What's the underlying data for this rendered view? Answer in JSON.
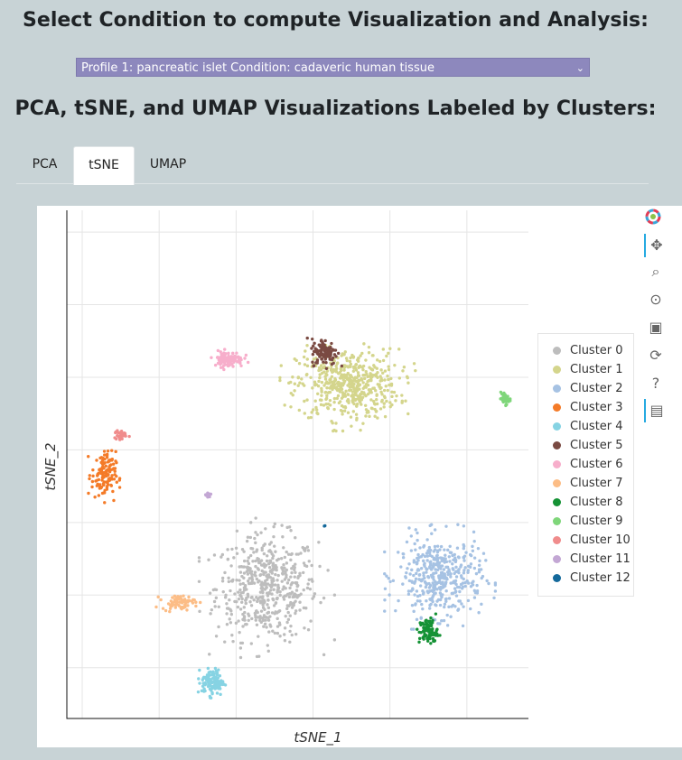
{
  "header": {
    "select_title": "Select Condition to compute Visualization and Analysis:",
    "section_title": "PCA, tSNE, and UMAP Visualizations Labeled by Clusters:"
  },
  "condition_select": {
    "value": "Profile 1: pancreatic islet Condition: cadaveric human tissue",
    "chevron": "⌄"
  },
  "tabs": [
    {
      "label": "PCA",
      "active": false
    },
    {
      "label": "tSNE",
      "active": true
    },
    {
      "label": "UMAP",
      "active": false
    }
  ],
  "toolbar": {
    "icons": [
      "bokeh-logo-icon",
      "pan-icon",
      "box-zoom-icon",
      "wheel-zoom-icon",
      "save-icon",
      "reset-icon",
      "help-icon",
      "hover-icon"
    ]
  },
  "chart_data": {
    "type": "scatter",
    "xlabel": "tSNE_1",
    "ylabel": "tSNE_2",
    "xlim": [
      0,
      6
    ],
    "ylim": [
      0,
      7
    ],
    "grid": true,
    "legend_position": "right",
    "series": [
      {
        "name": "Cluster 0",
        "color": "#bdbdbd",
        "center": [
          2.6,
          1.8
        ],
        "spread": [
          0.55,
          0.6
        ],
        "count": 520
      },
      {
        "name": "Cluster 1",
        "color": "#d4d58c",
        "center": [
          3.65,
          4.6
        ],
        "spread": [
          0.55,
          0.4
        ],
        "count": 520
      },
      {
        "name": "Cluster 2",
        "color": "#a6c2e3",
        "center": [
          4.85,
          1.95
        ],
        "spread": [
          0.45,
          0.45
        ],
        "count": 420
      },
      {
        "name": "Cluster 3",
        "color": "#f47b28",
        "center": [
          0.48,
          3.35
        ],
        "spread": [
          0.13,
          0.27
        ],
        "count": 130
      },
      {
        "name": "Cluster 4",
        "color": "#86d3e3",
        "center": [
          1.9,
          0.5
        ],
        "spread": [
          0.12,
          0.15
        ],
        "count": 120
      },
      {
        "name": "Cluster 5",
        "color": "#7a4a42",
        "center": [
          3.35,
          5.05
        ],
        "spread": [
          0.14,
          0.15
        ],
        "count": 110
      },
      {
        "name": "Cluster 6",
        "color": "#f7aecb",
        "center": [
          2.1,
          4.95
        ],
        "spread": [
          0.16,
          0.09
        ],
        "count": 110
      },
      {
        "name": "Cluster 7",
        "color": "#fcbd86",
        "center": [
          1.45,
          1.6
        ],
        "spread": [
          0.18,
          0.08
        ],
        "count": 70
      },
      {
        "name": "Cluster 8",
        "color": "#159235",
        "center": [
          4.7,
          1.2
        ],
        "spread": [
          0.1,
          0.15
        ],
        "count": 90
      },
      {
        "name": "Cluster 9",
        "color": "#7fd67a",
        "center": [
          5.7,
          4.4
        ],
        "spread": [
          0.05,
          0.06
        ],
        "count": 40
      },
      {
        "name": "Cluster 10",
        "color": "#f08c8c",
        "center": [
          0.7,
          3.9
        ],
        "spread": [
          0.07,
          0.06
        ],
        "count": 35
      },
      {
        "name": "Cluster 11",
        "color": "#c3a7d4",
        "center": [
          1.84,
          3.08
        ],
        "spread": [
          0.03,
          0.04
        ],
        "count": 15
      },
      {
        "name": "Cluster 12",
        "color": "#14699b",
        "center": [
          3.35,
          2.65
        ],
        "spread": [
          0.01,
          0.01
        ],
        "count": 2
      }
    ]
  }
}
